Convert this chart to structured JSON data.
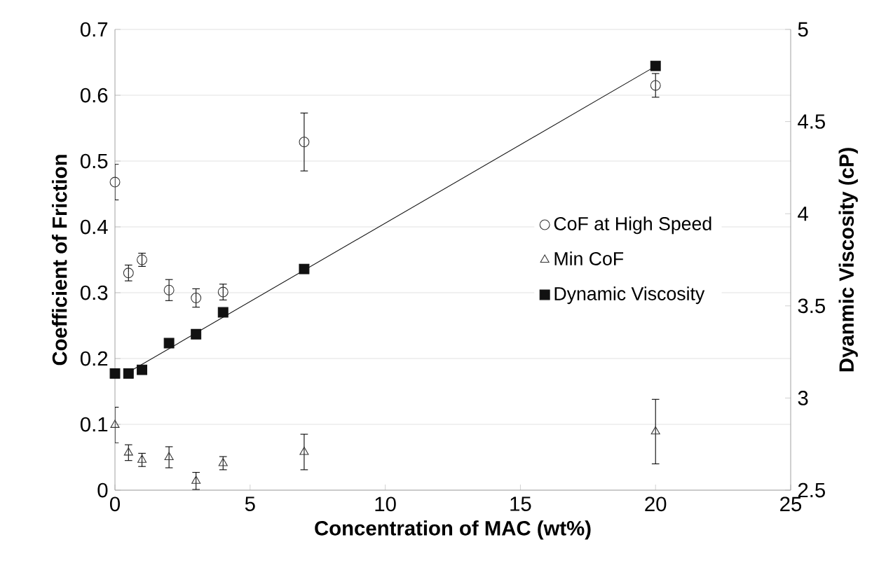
{
  "chart_data": {
    "type": "scatter",
    "xlabel": "Concentration of MAC (wt%)",
    "ylabel": "Coefficient of Friction",
    "y2label": "Dyanmic Viscosity (cP)",
    "xlim": [
      0,
      25
    ],
    "xticks": [
      0,
      5,
      10,
      15,
      20,
      25
    ],
    "ylim": [
      0,
      0.7
    ],
    "yticks": [
      0,
      0.1,
      0.2,
      0.3,
      0.4,
      0.5,
      0.6,
      0.7
    ],
    "y2lim": [
      2.5,
      5
    ],
    "y2ticks": [
      2.5,
      3,
      3.5,
      4,
      4.5,
      5
    ],
    "grid": "y",
    "legend": "right",
    "series": [
      {
        "name": "CoF at High Speed",
        "marker": "circle",
        "color": "#333333",
        "x": [
          0,
          0.5,
          1,
          2,
          3,
          4,
          7,
          20
        ],
        "values": [
          0.468,
          0.33,
          0.35,
          0.304,
          0.292,
          0.301,
          0.529,
          0.615
        ],
        "errors": [
          0.027,
          0.012,
          0.01,
          0.016,
          0.014,
          0.012,
          0.044,
          0.018
        ]
      },
      {
        "name": "Min CoF",
        "marker": "triangle",
        "color": "#333333",
        "x": [
          0,
          0.5,
          1,
          2,
          3,
          4,
          7,
          20
        ],
        "values": [
          0.099,
          0.057,
          0.046,
          0.05,
          0.014,
          0.041,
          0.058,
          0.089
        ],
        "errors": [
          0.027,
          0.012,
          0.01,
          0.016,
          0.013,
          0.01,
          0.027,
          0.049
        ]
      },
      {
        "name": "Dynamic Viscosity",
        "marker": "square",
        "axis": "y2",
        "color": "#111111",
        "x": [
          0,
          0.5,
          1,
          2,
          3,
          4,
          7,
          20
        ],
        "values": [
          3.133,
          3.133,
          3.153,
          3.298,
          3.346,
          3.465,
          3.7,
          4.802
        ]
      },
      {
        "type": "line",
        "axis": "y2",
        "color": "#111111",
        "x": [
          0.5,
          20
        ],
        "values": [
          3.14,
          4.8
        ]
      }
    ]
  }
}
